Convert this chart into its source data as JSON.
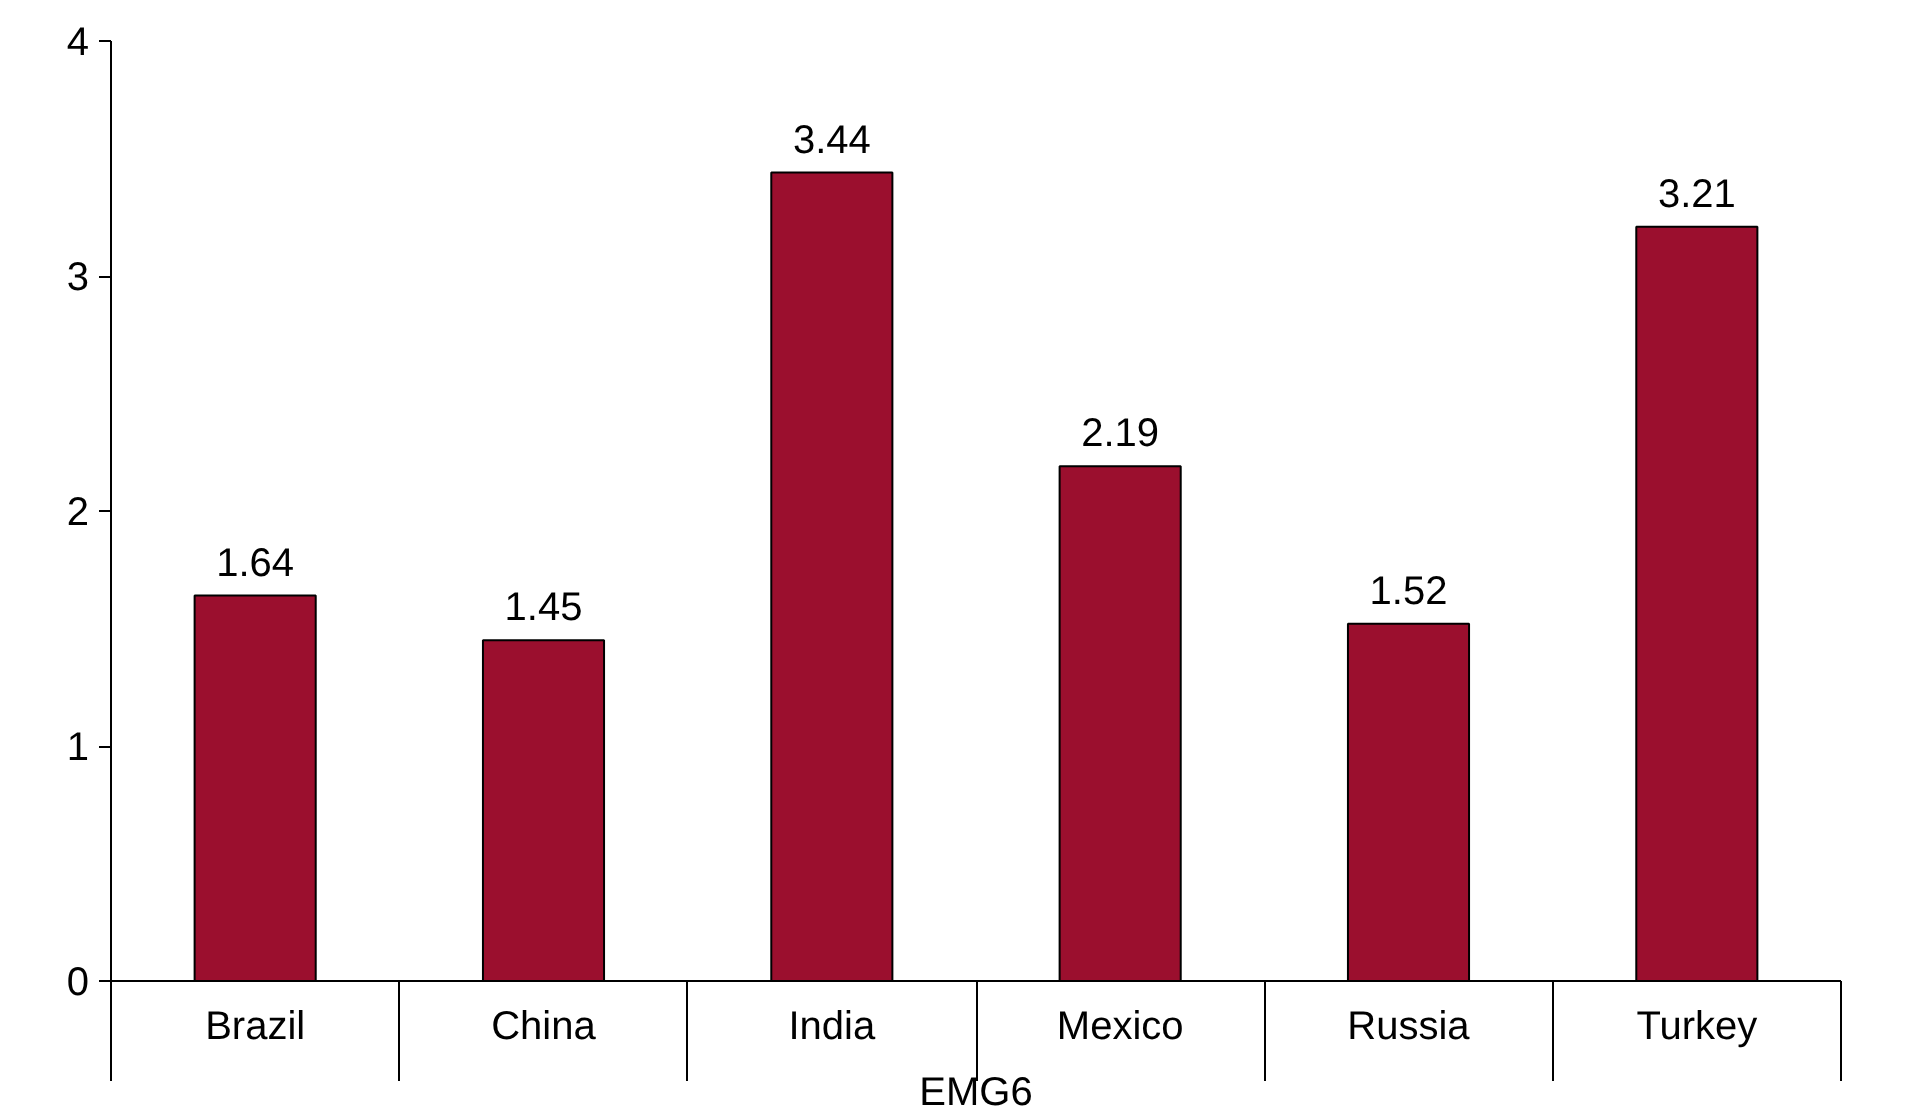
{
  "chart_data": {
    "type": "bar",
    "xlabel": "EMG6",
    "categories": [
      "Brazil",
      "China",
      "India",
      "Mexico",
      "Russia",
      "Turkey"
    ],
    "values": [
      1.64,
      1.45,
      3.44,
      2.19,
      1.52,
      3.21
    ],
    "color": "#9b0f2e",
    "ylim": [
      0,
      4
    ],
    "yticks": [
      0,
      1,
      2,
      3,
      4
    ],
    "data_labels": true,
    "grid": false
  }
}
